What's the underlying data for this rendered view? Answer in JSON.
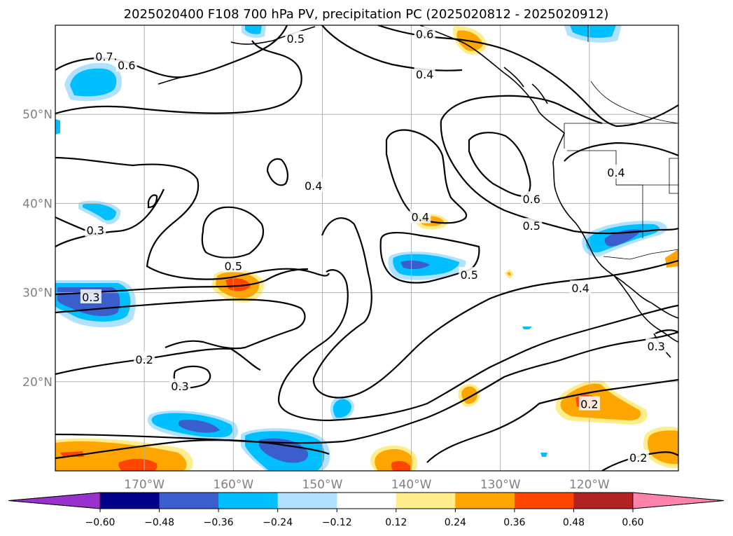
{
  "chart_data": {
    "type": "map-contour",
    "title": "2025020400 F108 700 hPa PV, precipitation PC (2025020812 - 2025020912)",
    "lon_ticks": [
      "170°W",
      "160°W",
      "150°W",
      "140°W",
      "130°W",
      "120°W"
    ],
    "lon_values": [
      -170,
      -160,
      -150,
      -140,
      -130,
      -120
    ],
    "lat_ticks": [
      "20°N",
      "30°N",
      "40°N",
      "50°N"
    ],
    "lat_values": [
      20,
      30,
      40,
      50
    ],
    "lon_range": [
      -180,
      -110
    ],
    "lat_range": [
      10,
      60
    ],
    "grid": true,
    "contour_labels": [
      {
        "text": "0.7",
        "lon": -174.5,
        "lat": 56.5
      },
      {
        "text": "0.6",
        "lon": -172,
        "lat": 55.5
      },
      {
        "text": "0.5",
        "lon": -153,
        "lat": 58.5
      },
      {
        "text": "0.6",
        "lon": -138.5,
        "lat": 59
      },
      {
        "text": "0.4",
        "lon": -138.5,
        "lat": 54.5
      },
      {
        "text": "0.4",
        "lon": -151,
        "lat": 42
      },
      {
        "text": "0.3",
        "lon": -175.5,
        "lat": 37
      },
      {
        "text": "0.4",
        "lon": -139,
        "lat": 38.5
      },
      {
        "text": "0.6",
        "lon": -126.5,
        "lat": 40.5
      },
      {
        "text": "0.5",
        "lon": -126.5,
        "lat": 37.5
      },
      {
        "text": "0.5",
        "lon": -160,
        "lat": 33
      },
      {
        "text": "0.5",
        "lon": -133.5,
        "lat": 32
      },
      {
        "text": "0.3",
        "lon": -176,
        "lat": 29.5
      },
      {
        "text": "0.4",
        "lon": -121,
        "lat": 30.5
      },
      {
        "text": "0.4",
        "lon": -117,
        "lat": 43.5
      },
      {
        "text": "0.3",
        "lon": -112.5,
        "lat": 24
      },
      {
        "text": "0.2",
        "lon": -170,
        "lat": 22.5
      },
      {
        "text": "0.3",
        "lon": -166,
        "lat": 19.5
      },
      {
        "text": "0.2",
        "lon": -120,
        "lat": 17.5
      },
      {
        "text": "0.2",
        "lon": -114.5,
        "lat": 11.5
      }
    ],
    "colorbar": {
      "ticks": [
        "−0.60",
        "−0.48",
        "−0.36",
        "−0.24",
        "−0.12",
        "0.12",
        "0.24",
        "0.36",
        "0.48",
        "0.60"
      ],
      "bounds": [
        -0.6,
        -0.48,
        -0.36,
        -0.24,
        -0.12,
        0.12,
        0.24,
        0.36,
        0.48,
        0.6
      ],
      "colors": [
        "#9932cc",
        "#00008b",
        "#3a5fcd",
        "#00bfff",
        "#b0e2ff",
        "#ffffff",
        "#ffec8b",
        "#ffa500",
        "#ff4500",
        "#b22222",
        "#ff82ab"
      ],
      "extend": "both"
    },
    "precip_colors": {
      "lightblue": "#b0e2ff",
      "blue": "#00bfff",
      "royal": "#3a5fcd",
      "yellow": "#ffec8b",
      "orange": "#ffa500",
      "red": "#ff4500"
    }
  }
}
